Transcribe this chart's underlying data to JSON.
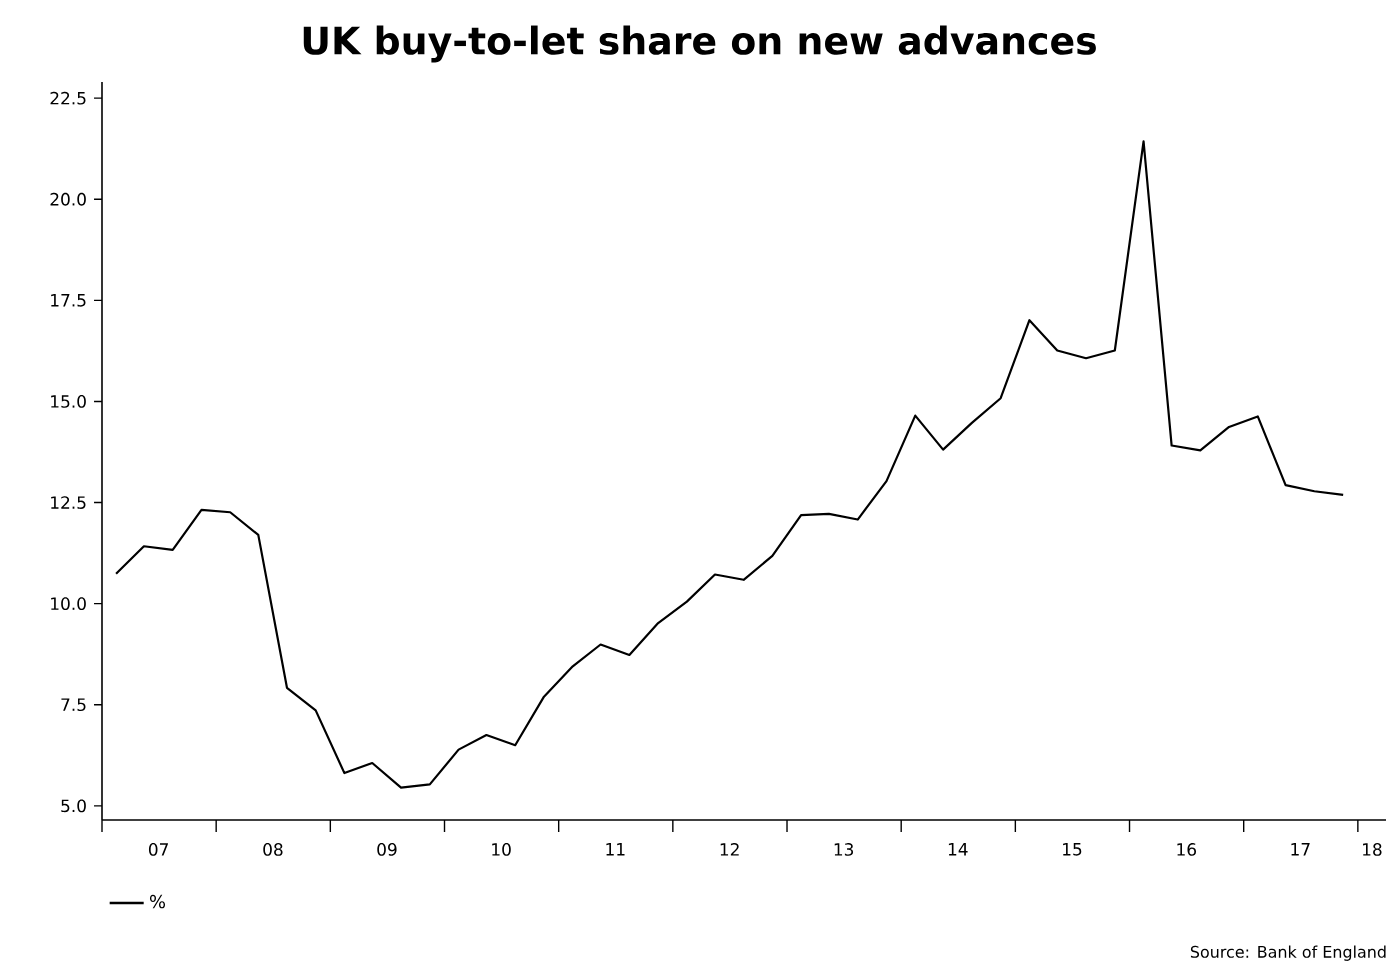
{
  "chart_data": {
    "type": "line",
    "title": "UK buy-to-let share on new advances",
    "annotations": [
      "Source: Bank of England"
    ],
    "x": [
      "2007-02-15",
      "2007-05-15",
      "2007-08-15",
      "2007-11-15",
      "2008-02-15",
      "2008-05-15",
      "2008-08-15",
      "2008-11-15",
      "2009-02-15",
      "2009-05-15",
      "2009-08-15",
      "2009-11-15",
      "2010-02-15",
      "2010-05-15",
      "2010-08-15",
      "2010-11-15",
      "2011-02-15",
      "2011-05-15",
      "2011-08-15",
      "2011-11-15",
      "2012-02-15",
      "2012-05-15",
      "2012-08-15",
      "2012-11-15",
      "2013-02-15",
      "2013-05-15",
      "2013-08-15",
      "2013-11-15",
      "2014-02-15",
      "2014-05-15",
      "2014-08-15",
      "2014-11-15",
      "2015-02-15",
      "2015-05-15",
      "2015-08-15",
      "2015-11-15",
      "2016-02-15",
      "2016-05-15",
      "2016-08-15",
      "2016-11-15",
      "2017-02-15",
      "2017-05-15",
      "2017-08-15",
      "2017-11-15"
    ],
    "series": [
      {
        "name": "%",
        "color": "#000000",
        "values": [
          10.74,
          11.42,
          11.33,
          12.32,
          12.26,
          11.7,
          7.92,
          7.36,
          5.81,
          6.06,
          5.45,
          5.53,
          6.39,
          6.75,
          6.5,
          7.7,
          8.45,
          8.99,
          8.73,
          9.52,
          10.05,
          10.72,
          10.59,
          11.18,
          12.19,
          12.22,
          12.08,
          13.03,
          14.65,
          13.81,
          14.47,
          15.08,
          17.01,
          16.26,
          16.07,
          16.26,
          21.43,
          13.91,
          13.79,
          14.37,
          14.63,
          12.93,
          12.78,
          12.69
        ]
      }
    ],
    "xlim": [
      "2007-01-01",
      "2018-04-01"
    ],
    "xticks": [
      {
        "value": "2007-01-01",
        "label": null
      },
      {
        "value": "2007-07-01",
        "label": "07"
      },
      {
        "value": "2008-01-01",
        "label": null
      },
      {
        "value": "2008-07-01",
        "label": "08"
      },
      {
        "value": "2009-01-01",
        "label": null
      },
      {
        "value": "2009-07-01",
        "label": "09"
      },
      {
        "value": "2010-01-01",
        "label": null
      },
      {
        "value": "2010-07-01",
        "label": "10"
      },
      {
        "value": "2011-01-01",
        "label": null
      },
      {
        "value": "2011-07-01",
        "label": "11"
      },
      {
        "value": "2012-01-01",
        "label": null
      },
      {
        "value": "2012-07-01",
        "label": "12"
      },
      {
        "value": "2013-01-01",
        "label": null
      },
      {
        "value": "2013-07-01",
        "label": "13"
      },
      {
        "value": "2014-01-01",
        "label": null
      },
      {
        "value": "2014-07-01",
        "label": "14"
      },
      {
        "value": "2015-01-01",
        "label": null
      },
      {
        "value": "2015-07-01",
        "label": "15"
      },
      {
        "value": "2016-01-01",
        "label": null
      },
      {
        "value": "2016-07-01",
        "label": "16"
      },
      {
        "value": "2017-01-01",
        "label": null
      },
      {
        "value": "2017-07-01",
        "label": "17"
      },
      {
        "value": "2018-01-01",
        "label": null
      },
      {
        "value": "2018-02-15",
        "label": "18"
      }
    ],
    "ylim": [
      4.65,
      22.9
    ],
    "yticks": [
      {
        "value": 5,
        "label": "5.0"
      },
      {
        "value": 7.5,
        "label": "7.5"
      },
      {
        "value": 10,
        "label": "10.0"
      },
      {
        "value": 12.5,
        "label": "12.5"
      },
      {
        "value": 15,
        "label": "15.0"
      },
      {
        "value": 17.5,
        "label": "17.5"
      },
      {
        "value": 20,
        "label": "20.0"
      },
      {
        "value": 22.5,
        "label": "22.5"
      }
    ],
    "grid": false,
    "legend": "bottom left",
    "line_style": "solid",
    "marker": "none"
  }
}
